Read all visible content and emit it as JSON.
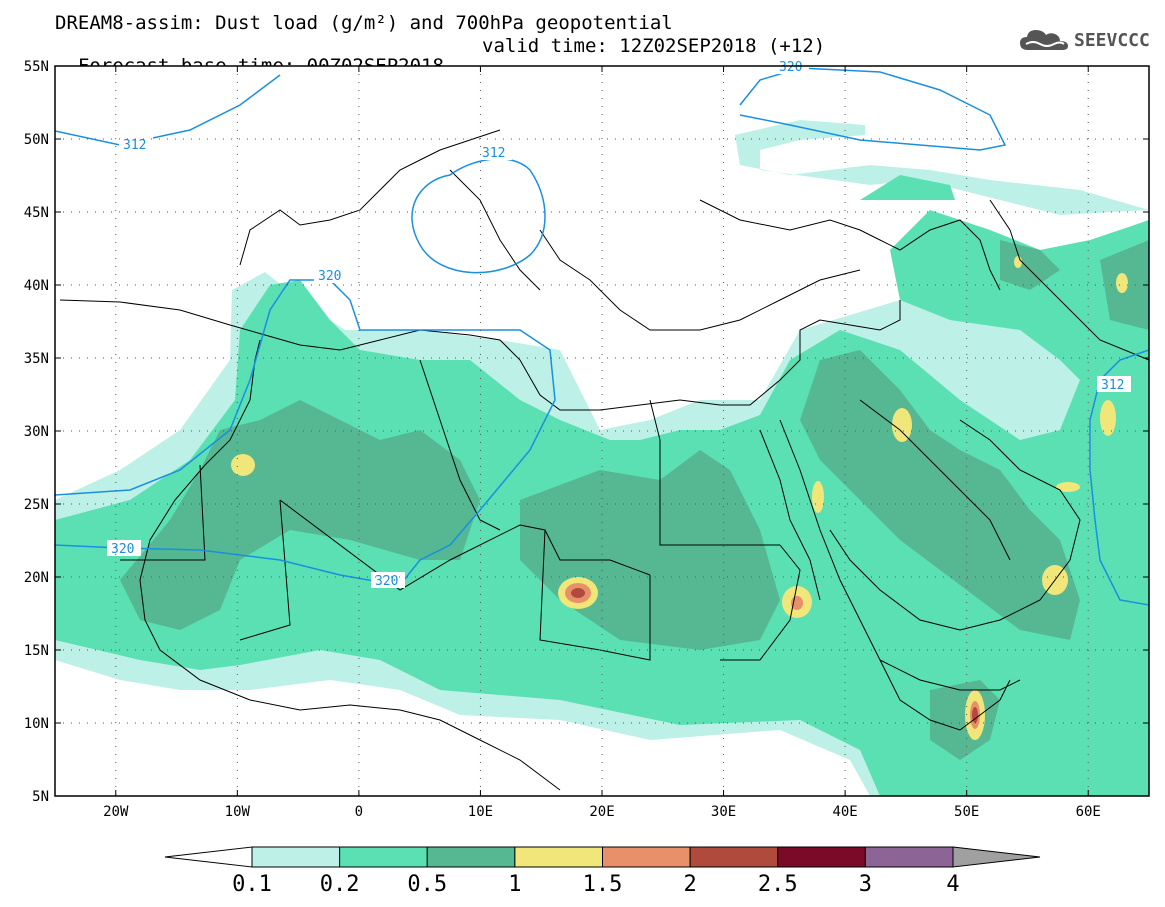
{
  "header": {
    "title_line1": "DREAM8-assim: Dust load (g/m²) and 700hPa geopotential",
    "forecast_base": "Forecast base time: 00Z02SEP2018",
    "valid_time": "valid time: 12Z02SEP2018 (+12)"
  },
  "logo": {
    "text": "SEEVCCC",
    "icon": "cloud-icon"
  },
  "map": {
    "lon_range": [
      -25,
      65
    ],
    "lat_range": [
      5,
      55
    ],
    "lon_ticks": [
      "20W",
      "10W",
      "0",
      "10E",
      "20E",
      "30E",
      "40E",
      "50E",
      "60E"
    ],
    "lat_ticks": [
      "55N",
      "50N",
      "45N",
      "40N",
      "35N",
      "30N",
      "25N",
      "20N",
      "15N",
      "10N",
      "5N"
    ],
    "contour_labels": [
      "312",
      "320",
      "312",
      "320",
      "320",
      "312",
      "320"
    ],
    "grid": "dotted"
  },
  "colorbar": {
    "labels": [
      "0.1",
      "0.2",
      "0.5",
      "1",
      "1.5",
      "2",
      "2.5",
      "3",
      "4"
    ],
    "colors": [
      "#ffffff",
      "#bdf0e6",
      "#5ae0b3",
      "#55b893",
      "#f0e67a",
      "#e8906a",
      "#b04a3c",
      "#7a0a28",
      "#8c6496",
      "#a0a0a0"
    ]
  },
  "colors": {
    "dust_0_1": "#bdf0e6",
    "dust_0_2": "#5ae0b3",
    "dust_0_5": "#55b893",
    "dust_1": "#f0e67a",
    "dust_1_5": "#e8906a",
    "dust_2": "#b04a3c",
    "contour": "#1a8fe0"
  }
}
